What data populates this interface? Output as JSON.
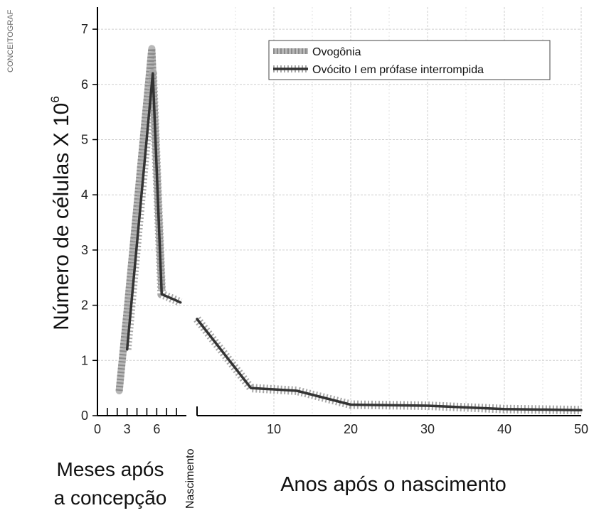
{
  "credit": "CONCEITOGRAF",
  "colors": {
    "ovogonia": "#b8b8b8",
    "ovogonia_dots": "#8a8a8a",
    "ovocito": "#333333",
    "grid": "#cfcfcf",
    "axis": "#000000"
  },
  "chart_data": {
    "type": "line",
    "ylabel": "Número de células X 10⁶",
    "ylabel_base": "Número de células X 10",
    "ylabel_exp": "6",
    "ylim": [
      0,
      7.4
    ],
    "yticks": [
      "0",
      "1",
      "2",
      "3",
      "4",
      "5",
      "6",
      "7"
    ],
    "grid": true,
    "legend": "top-right",
    "panels": [
      {
        "id": "months",
        "xlabel_line1": "Meses após",
        "xlabel_line2": "a concepção",
        "xlim": [
          0,
          9
        ],
        "xticks": [
          "0",
          "3",
          "6"
        ],
        "xtick_values": [
          0,
          3,
          6
        ],
        "minor_ticks": [
          1,
          2,
          3,
          4,
          5,
          6,
          7,
          8
        ]
      },
      {
        "id": "years",
        "xlabel": "Anos após o nascimento",
        "xlim": [
          0,
          50
        ],
        "xticks": [
          "10",
          "20",
          "30",
          "40",
          "50"
        ],
        "xtick_values": [
          10,
          20,
          30,
          40,
          50
        ]
      }
    ],
    "divider_label": "Nascimento",
    "series": [
      {
        "name": "Ovogônia",
        "segments": [
          {
            "panel": "months",
            "x": [
              2.2,
              3,
              5.5,
              6.5
            ],
            "y": [
              0.45,
              1.9,
              6.65,
              2.3
            ]
          }
        ]
      },
      {
        "name": "Ovócito I em prófase interrompida",
        "segments": [
          {
            "panel": "months",
            "x": [
              3,
              5.6,
              6.5,
              7.8,
              8.4
            ],
            "y": [
              1.2,
              6.2,
              2.2,
              2.1,
              2.05
            ]
          },
          {
            "panel": "years",
            "x": [
              0,
              7,
              13,
              20,
              30,
              40,
              50
            ],
            "y": [
              1.75,
              0.5,
              0.45,
              0.2,
              0.18,
              0.12,
              0.1
            ]
          }
        ]
      }
    ]
  }
}
